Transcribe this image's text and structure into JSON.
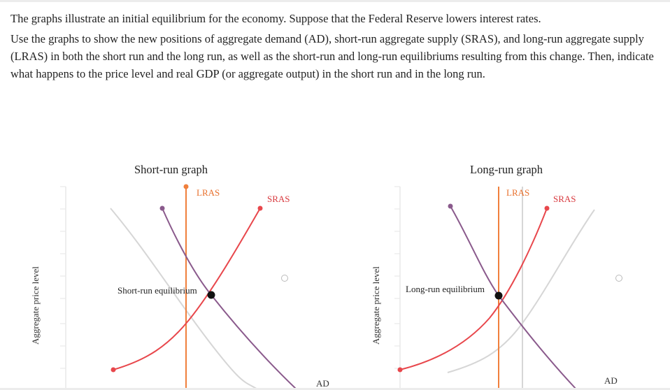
{
  "instructions": {
    "paragraph1": "The graphs illustrate an initial equilibrium for the economy. Suppose that the Federal Reserve lowers interest rates.",
    "paragraph2": "Use the graphs to show the new positions of aggregate demand (AD), short-run aggregate supply (SRAS), and long-run aggregate supply (LRAS) in both the short run and the long run, as well as the short-run and long-run equilibriums resulting from this change. Then, indicate what happens to the price level and real GDP (or aggregate output) in the short run and in the long run."
  },
  "short_run_graph": {
    "title": "Short-run graph",
    "y_axis_label": "Aggregate price level",
    "lras_label": "LRAS",
    "sras_label": "SRAS",
    "ad_label": "AD",
    "equilibrium_label": "Short-run equilibrium"
  },
  "long_run_graph": {
    "title": "Long-run graph",
    "y_axis_label": "Aggregate price level",
    "lras_label": "LRAS",
    "sras_label": "SRAS",
    "ad_label": "AD",
    "equilibrium_label": "Long-run equilibrium"
  },
  "colors": {
    "lras": "#f07f3c",
    "sras": "#e8474c",
    "ad": "#8a5a8c",
    "initial_curve": "#d6d6d6",
    "equilibrium_point": "#111111",
    "gridline": "#e6e6e6"
  }
}
